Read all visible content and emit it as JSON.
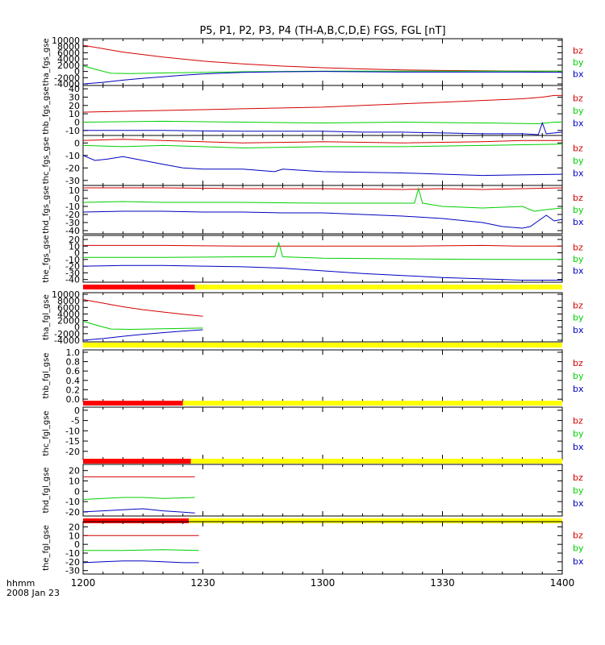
{
  "colors": {
    "bz": "#d40000",
    "by": "#00d000",
    "bx": "#0000c0",
    "bar_red": "#ff0000",
    "bar_yellow": "#ffff00",
    "frame": "#000000"
  },
  "chart_data": {
    "type": "line",
    "title": "P5, P1, P2, P3, P4 (TH-A,B,C,D,E) FGS, FGL [nT]",
    "x_axis": {
      "range": [
        "12:00",
        "14:00"
      ],
      "ticks": [
        "1200",
        "1230",
        "1300",
        "1330",
        "1400"
      ],
      "label_line1": "hhmm",
      "label_line2": "2008 Jan 23"
    },
    "panels": [
      {
        "ylabel": "tha_fgs_gse",
        "ylim": [
          -4500,
          10500
        ],
        "yticks": [
          "10000",
          "8000",
          "6000",
          "4000",
          "2000",
          "0",
          "-2000",
          "-4000"
        ],
        "series": [
          {
            "name": "bz",
            "x": [
              0,
              10,
              20,
              30,
              40,
              50,
              60,
              70,
              80,
              90,
              100,
              110,
              120
            ],
            "y": [
              8400,
              6200,
              4600,
              3300,
              2400,
              1700,
              1200,
              800,
              500,
              300,
              200,
              100,
              100
            ]
          },
          {
            "name": "by",
            "x": [
              0,
              3,
              7,
              12,
              20,
              30,
              40,
              50,
              60,
              70,
              80,
              90,
              100,
              110,
              120
            ],
            "y": [
              1800,
              700,
              -600,
              -700,
              -500,
              -300,
              -100,
              0,
              100,
              100,
              100,
              100,
              100,
              100,
              100
            ]
          },
          {
            "name": "bx",
            "x": [
              0,
              5,
              10,
              15,
              20,
              25,
              30,
              40,
              50,
              60,
              70,
              80,
              90,
              100,
              110,
              120
            ],
            "y": [
              -4000,
              -3500,
              -2800,
              -2200,
              -1700,
              -1200,
              -800,
              -300,
              -100,
              0,
              -100,
              -200,
              -200,
              -200,
              -200,
              -300
            ]
          }
        ],
        "bar": null
      },
      {
        "ylabel": "thb_fgs_gse",
        "ylim": [
          -16,
          44
        ],
        "yticks": [
          "40",
          "30",
          "20",
          "10",
          "0",
          "-10"
        ],
        "series": [
          {
            "name": "bz",
            "x": [
              0,
              10,
              20,
              30,
              40,
              50,
              60,
              70,
              80,
              90,
              100,
              110,
              115,
              118,
              120
            ],
            "y": [
              12,
              13,
              14,
              15,
              16,
              17,
              18,
              20,
              22,
              24,
              26,
              28,
              30,
              32,
              32
            ]
          },
          {
            "name": "by",
            "x": [
              0,
              20,
              40,
              60,
              80,
              100,
              114,
              116,
              118,
              120
            ],
            "y": [
              0,
              1,
              0,
              -1,
              0,
              -1,
              -2,
              -1,
              0,
              0
            ]
          },
          {
            "name": "bx",
            "x": [
              0,
              20,
              40,
              60,
              70,
              80,
              90,
              100,
              110,
              114,
              115,
              116,
              118,
              120
            ],
            "y": [
              -10,
              -10,
              -11,
              -11,
              -12,
              -12,
              -13,
              -14,
              -14,
              -15,
              -1,
              -14,
              -13,
              -12
            ]
          }
        ],
        "bar": null
      },
      {
        "ylabel": "thc_fgs_gse",
        "ylim": [
          -34,
          6
        ],
        "yticks": [
          "0",
          "-10",
          "-20",
          "-30"
        ],
        "series": [
          {
            "name": "bz",
            "x": [
              0,
              10,
              20,
              40,
              60,
              80,
              100,
              110,
              120
            ],
            "y": [
              2,
              3,
              2,
              0,
              1,
              0,
              1,
              2,
              2
            ]
          },
          {
            "name": "by",
            "x": [
              0,
              10,
              20,
              30,
              40,
              60,
              80,
              100,
              120
            ],
            "y": [
              -2,
              -3,
              -2,
              -3,
              -4,
              -3,
              -3,
              -2,
              -1
            ]
          },
          {
            "name": "bx",
            "x": [
              0,
              3,
              6,
              10,
              15,
              20,
              25,
              30,
              40,
              48,
              50,
              60,
              80,
              100,
              120
            ],
            "y": [
              -10,
              -14,
              -13,
              -11,
              -14,
              -17,
              -20,
              -21,
              -21,
              -23,
              -21,
              -23,
              -24,
              -26,
              -25
            ]
          }
        ],
        "bar": null
      },
      {
        "ylabel": "thd_fgs_gse",
        "ylim": [
          -44,
          16
        ],
        "yticks": [
          "10",
          "0",
          "-10",
          "-20",
          "-30",
          "-40"
        ],
        "series": [
          {
            "name": "bz",
            "x": [
              0,
              20,
              40,
              60,
              80,
              90,
              100,
              110,
              120
            ],
            "y": [
              13,
              13,
              12,
              12,
              11,
              12,
              11,
              12,
              13
            ]
          },
          {
            "name": "by",
            "x": [
              0,
              10,
              20,
              40,
              60,
              80,
              83,
              84,
              85,
              90,
              100,
              110,
              113,
              116,
              120
            ],
            "y": [
              -5,
              -4,
              -5,
              -5,
              -6,
              -6,
              -6,
              12,
              -6,
              -10,
              -12,
              -10,
              -16,
              -14,
              -12
            ]
          },
          {
            "name": "bx",
            "x": [
              0,
              10,
              20,
              30,
              40,
              50,
              60,
              70,
              80,
              90,
              100,
              105,
              110,
              112,
              114,
              116,
              118,
              120
            ],
            "y": [
              -17,
              -16,
              -16,
              -17,
              -17,
              -18,
              -18,
              -20,
              -22,
              -25,
              -30,
              -35,
              -37,
              -35,
              -28,
              -21,
              -28,
              -26
            ]
          }
        ],
        "bar": null
      },
      {
        "ylabel": "the_fgs_gse",
        "ylim": [
          -44,
          26
        ],
        "yticks": [
          "20",
          "10",
          "0",
          "-10",
          "-20",
          "-30",
          "-40"
        ],
        "series": [
          {
            "name": "bz",
            "x": [
              0,
              20,
              40,
              60,
              80,
              100,
              110,
              120
            ],
            "y": [
              11,
              11,
              10,
              10,
              10,
              11,
              10,
              10
            ]
          },
          {
            "name": "by",
            "x": [
              0,
              20,
              40,
              48,
              49,
              50,
              60,
              80,
              100,
              120
            ],
            "y": [
              -7,
              -7,
              -6,
              -6,
              15,
              -6,
              -8,
              -9,
              -10,
              -10
            ]
          },
          {
            "name": "bx",
            "x": [
              0,
              10,
              20,
              30,
              40,
              50,
              60,
              70,
              80,
              90,
              100,
              110,
              120
            ],
            "y": [
              -20,
              -19,
              -19,
              -20,
              -21,
              -23,
              -27,
              -31,
              -34,
              -37,
              -39,
              -41,
              -41
            ]
          }
        ],
        "bar": [
          {
            "from": 0,
            "to": 28,
            "color": "red"
          },
          {
            "from": 28,
            "to": 120,
            "color": "yellow"
          }
        ]
      },
      {
        "ylabel": "tha_fgl_gse",
        "ylim": [
          -4500,
          10500
        ],
        "yticks": [
          "10000",
          "8000",
          "6000",
          "4000",
          "2000",
          "0",
          "-2000",
          "-4000"
        ],
        "series": [
          {
            "name": "bz",
            "x": [
              0,
              5,
              10,
              15,
              20,
              25,
              30
            ],
            "y": [
              8400,
              7300,
              6200,
              5300,
              4600,
              3900,
              3300
            ]
          },
          {
            "name": "by",
            "x": [
              0,
              3,
              7,
              12,
              20,
              30
            ],
            "y": [
              1800,
              700,
              -600,
              -700,
              -500,
              -300
            ]
          },
          {
            "name": "bx",
            "x": [
              0,
              5,
              10,
              15,
              20,
              25,
              30
            ],
            "y": [
              -4000,
              -3500,
              -2800,
              -2200,
              -1700,
              -1200,
              -800
            ]
          }
        ],
        "bar": [
          {
            "from": 0,
            "to": 120,
            "color": "yellow"
          }
        ]
      },
      {
        "ylabel": "thb_fgl_gse",
        "ylim": [
          -0.05,
          1.05
        ],
        "yticks": [
          "1.0",
          "0.8",
          "0.6",
          "0.4",
          "0.2",
          "0.0"
        ],
        "series": [],
        "bar": [
          {
            "from": 0,
            "to": 25,
            "color": "red"
          },
          {
            "from": 25,
            "to": 120,
            "color": "yellow"
          }
        ]
      },
      {
        "ylabel": "thc_fgl_gse",
        "ylim": [
          -24,
          1.5
        ],
        "yticks": [
          "0",
          "-5",
          "-10",
          "-15",
          "-20"
        ],
        "series": [],
        "bar": [
          {
            "from": 0,
            "to": 27,
            "color": "red"
          },
          {
            "from": 27,
            "to": 120,
            "color": "yellow"
          }
        ]
      },
      {
        "ylabel": "thd_fgl_gse",
        "ylim": [
          -24,
          26
        ],
        "yticks": [
          "20",
          "10",
          "0",
          "-10",
          "-20"
        ],
        "series": [
          {
            "name": "bz",
            "x": [
              0,
              10,
              20,
              28
            ],
            "y": [
              14,
              14,
              14,
              14
            ]
          },
          {
            "name": "by",
            "x": [
              0,
              5,
              10,
              15,
              20,
              28
            ],
            "y": [
              -8,
              -7,
              -6,
              -6,
              -7,
              -6
            ]
          },
          {
            "name": "bx",
            "x": [
              0,
              5,
              10,
              15,
              20,
              24,
              28
            ],
            "y": [
              -20,
              -19,
              -18,
              -17,
              -19,
              -20,
              -21
            ]
          }
        ],
        "bar": [
          {
            "from": 0,
            "to": 26.5,
            "color": "red"
          },
          {
            "from": 26.5,
            "to": 120,
            "color": "yellow"
          }
        ]
      },
      {
        "ylabel": "the_fgl_gse",
        "ylim": [
          -34,
          26
        ],
        "yticks": [
          "20",
          "10",
          "0",
          "-10",
          "-20",
          "-30"
        ],
        "series": [
          {
            "name": "bz",
            "x": [
              0,
              10,
              20,
              29
            ],
            "y": [
              10,
              10,
              10,
              10
            ]
          },
          {
            "name": "by",
            "x": [
              0,
              10,
              20,
              29
            ],
            "y": [
              -7,
              -7,
              -6,
              -7
            ]
          },
          {
            "name": "bx",
            "x": [
              0,
              5,
              10,
              15,
              20,
              25,
              29
            ],
            "y": [
              -21,
              -20,
              -19,
              -19,
              -20,
              -21,
              -21
            ]
          }
        ],
        "bar": null
      }
    ],
    "legend": [
      "bz",
      "by",
      "bx"
    ]
  }
}
